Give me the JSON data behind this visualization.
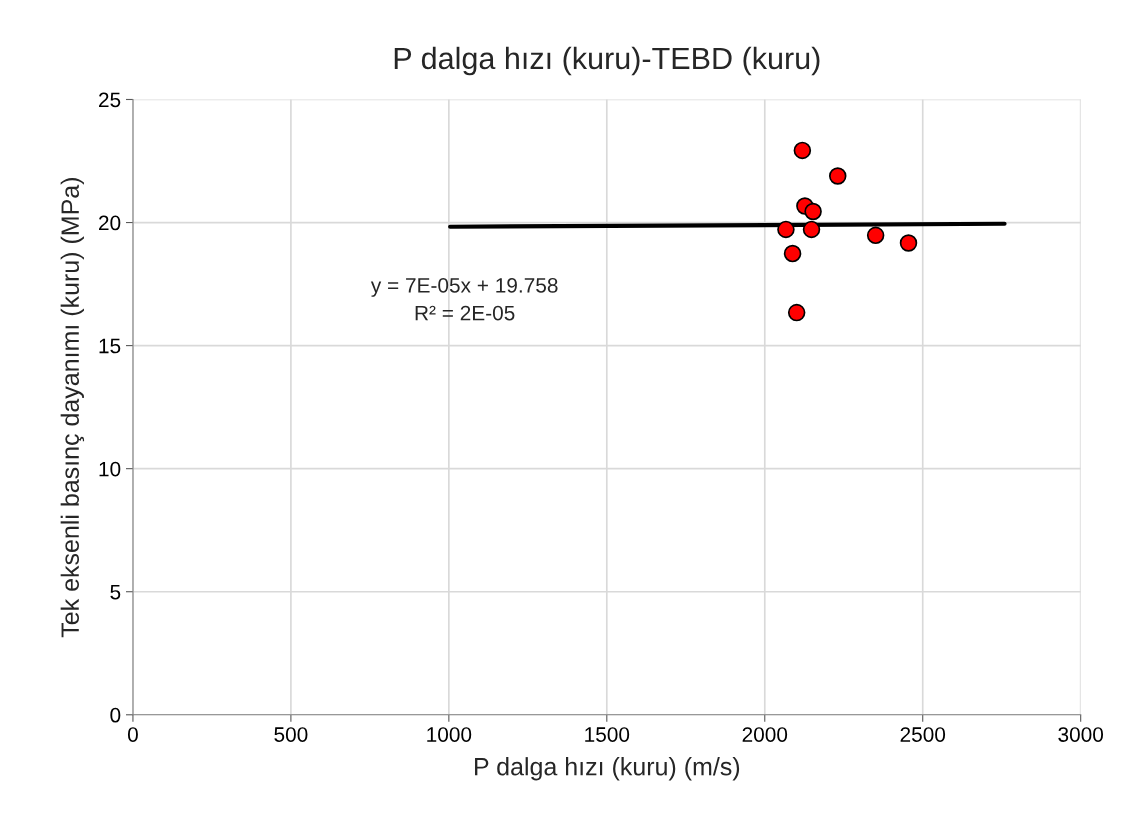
{
  "chart_data": {
    "type": "scatter",
    "title": "P dalga hızı (kuru)-TEBD (kuru)",
    "xlabel": "P dalga hızı (kuru) (m/s)",
    "ylabel": "Tek eksenli basınç dayanımı (kuru) (MPa)",
    "xlim": [
      0,
      3000
    ],
    "xticks": [
      0,
      500,
      1000,
      1500,
      2000,
      2500,
      3000
    ],
    "ylim": [
      0,
      25
    ],
    "yticks": [
      0,
      5,
      10,
      15,
      20,
      25
    ],
    "grid": true,
    "legend": false,
    "series": [
      {
        "marker": "circle",
        "color": "#ff0000",
        "x": [
          2119,
          2231,
          2127,
          2153,
          2067,
          2148,
          2088,
          2351,
          2455,
          2101
        ],
        "values": [
          22.93,
          21.89,
          20.67,
          20.45,
          19.72,
          19.72,
          18.74,
          19.48,
          19.17,
          16.34
        ]
      },
      {
        "type": "line",
        "color": "#000000",
        "x": [
          1004,
          2759
        ],
        "values": [
          19.83,
          19.95
        ],
        "line_style": "solid"
      }
    ],
    "annotations": [
      "y = 7E-05x + 19.758",
      "R² = 2E-05"
    ]
  }
}
